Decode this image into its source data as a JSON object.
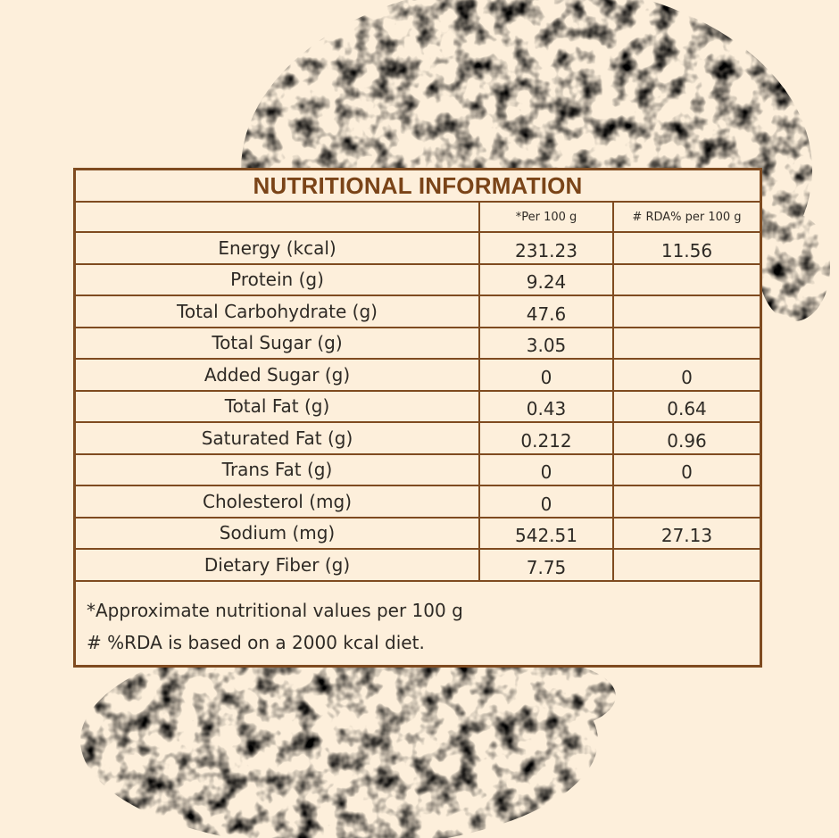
{
  "title": "NUTRITIONAL INFORMATION",
  "columns": [
    "",
    "*Per 100 g",
    "# RDA% per 100 g"
  ],
  "rows": [
    {
      "label": "Energy (kcal)",
      "per100": "231.23",
      "rda": "11.56"
    },
    {
      "label": "Protein (g)",
      "per100": "9.24",
      "rda": ""
    },
    {
      "label": "Total Carbohydrate (g)",
      "per100": "47.6",
      "rda": ""
    },
    {
      "label": "Total Sugar (g)",
      "per100": "3.05",
      "rda": ""
    },
    {
      "label": "Added Sugar (g)",
      "per100": "0",
      "rda": "0"
    },
    {
      "label": "Total Fat (g)",
      "per100": "0.43",
      "rda": "0.64"
    },
    {
      "label": "Saturated Fat (g)",
      "per100": "0.212",
      "rda": "0.96"
    },
    {
      "label": "Trans Fat (g)",
      "per100": "0",
      "rda": "0"
    },
    {
      "label": "Cholesterol (mg)",
      "per100": "0",
      "rda": ""
    },
    {
      "label": "Sodium (mg)",
      "per100": "542.51",
      "rda": "27.13"
    },
    {
      "label": "Dietary Fiber (g)",
      "per100": "7.75",
      "rda": ""
    }
  ],
  "footnotes": [
    "*Approximate nutritional values per 100 g",
    "# %RDA is based on a 2000 kcal diet."
  ],
  "colors": {
    "background": "#fdefdb",
    "border": "#7f4b20",
    "title": "#7a4418",
    "text": "#2e2a25",
    "splash": "#f3cf83"
  }
}
